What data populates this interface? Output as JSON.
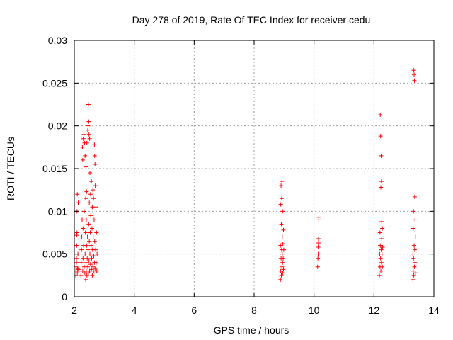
{
  "chart_data": {
    "type": "scatter",
    "title": "Day 278 of 2019, Rate Of TEC Index for receiver cedu",
    "xlabel": "GPS time / hours",
    "ylabel": "ROTI / TECUs",
    "xlim": [
      2,
      14
    ],
    "ylim": [
      0,
      0.03
    ],
    "x_ticks": [
      2,
      4,
      6,
      8,
      10,
      12,
      14
    ],
    "x_tick_labels": [
      "2",
      "4",
      "6",
      "8",
      "10",
      "12",
      "14"
    ],
    "y_ticks": [
      0,
      0.005,
      0.01,
      0.015,
      0.02,
      0.025,
      0.03
    ],
    "y_tick_labels": [
      "0",
      "0.005",
      "0.01",
      "0.015",
      "0.02",
      "0.025",
      "0.03"
    ],
    "grid": true,
    "marker": "+",
    "color": "#ff0000",
    "series": [
      {
        "name": "ROTI",
        "points": [
          [
            2.05,
            0.0025
          ],
          [
            2.05,
            0.003
          ],
          [
            2.06,
            0.0035
          ],
          [
            2.07,
            0.004
          ],
          [
            2.07,
            0.0045
          ],
          [
            2.08,
            0.006
          ],
          [
            2.08,
            0.0072
          ],
          [
            2.09,
            0.0075
          ],
          [
            2.09,
            0.01
          ],
          [
            2.1,
            0.012
          ],
          [
            2.1,
            0.0028
          ],
          [
            2.11,
            0.0033
          ],
          [
            2.12,
            0.005
          ],
          [
            2.13,
            0.011
          ],
          [
            2.14,
            0.0032
          ],
          [
            2.15,
            0.003
          ],
          [
            2.22,
            0.0025
          ],
          [
            2.23,
            0.004
          ],
          [
            2.24,
            0.0055
          ],
          [
            2.25,
            0.007
          ],
          [
            2.26,
            0.009
          ],
          [
            2.27,
            0.0175
          ],
          [
            2.28,
            0.003
          ],
          [
            2.28,
            0.016
          ],
          [
            2.29,
            0.0045
          ],
          [
            2.29,
            0.008
          ],
          [
            2.3,
            0.0185
          ],
          [
            2.31,
            0.006
          ],
          [
            2.32,
            0.019
          ],
          [
            2.33,
            0.0035
          ],
          [
            2.33,
            0.01
          ],
          [
            2.34,
            0.018
          ],
          [
            2.35,
            0.0028
          ],
          [
            2.36,
            0.005
          ],
          [
            2.36,
            0.0165
          ],
          [
            2.37,
            0.0075
          ],
          [
            2.38,
            0.002
          ],
          [
            2.38,
            0.0115
          ],
          [
            2.39,
            0.004
          ],
          [
            2.39,
            0.0152
          ],
          [
            2.4,
            0.003
          ],
          [
            2.4,
            0.009
          ],
          [
            2.41,
            0.006
          ],
          [
            2.41,
            0.0123
          ],
          [
            2.42,
            0.0025
          ],
          [
            2.42,
            0.018
          ],
          [
            2.43,
            0.0045
          ],
          [
            2.44,
            0.007
          ],
          [
            2.45,
            0.0035
          ],
          [
            2.45,
            0.0195
          ],
          [
            2.46,
            0.0055
          ],
          [
            2.46,
            0.02
          ],
          [
            2.47,
            0.0028
          ],
          [
            2.47,
            0.0225
          ],
          [
            2.48,
            0.0085
          ],
          [
            2.48,
            0.0205
          ],
          [
            2.49,
            0.0042
          ],
          [
            2.49,
            0.019
          ],
          [
            2.5,
            0.011
          ],
          [
            2.5,
            0.0065
          ],
          [
            2.51,
            0.003
          ],
          [
            2.51,
            0.0185
          ],
          [
            2.52,
            0.005
          ],
          [
            2.52,
            0.0145
          ],
          [
            2.53,
            0.0075
          ],
          [
            2.54,
            0.0038
          ],
          [
            2.54,
            0.012
          ],
          [
            2.55,
            0.0095
          ],
          [
            2.56,
            0.006
          ],
          [
            2.57,
            0.0032
          ],
          [
            2.57,
            0.0135
          ],
          [
            2.58,
            0.0045
          ],
          [
            2.59,
            0.008
          ],
          [
            2.6,
            0.0025
          ],
          [
            2.6,
            0.0105
          ],
          [
            2.61,
            0.0055
          ],
          [
            2.62,
            0.0035
          ],
          [
            2.62,
            0.0125
          ],
          [
            2.63,
            0.007
          ],
          [
            2.64,
            0.003
          ],
          [
            2.64,
            0.0115
          ],
          [
            2.65,
            0.0048
          ],
          [
            2.66,
            0.009
          ],
          [
            2.67,
            0.004
          ],
          [
            2.67,
            0.0178
          ],
          [
            2.68,
            0.0165
          ],
          [
            2.68,
            0.0065
          ],
          [
            2.69,
            0.0155
          ],
          [
            2.69,
            0.0033
          ],
          [
            2.7,
            0.013
          ],
          [
            2.71,
            0.0055
          ],
          [
            2.72,
            0.0028
          ],
          [
            2.72,
            0.0105
          ],
          [
            2.73,
            0.004
          ],
          [
            2.74,
            0.0075
          ],
          [
            2.75,
            0.003
          ],
          [
            2.76,
            0.005
          ],
          [
            8.88,
            0.002
          ],
          [
            8.88,
            0.006
          ],
          [
            8.89,
            0.003
          ],
          [
            8.89,
            0.0108
          ],
          [
            8.9,
            0.0045
          ],
          [
            8.9,
            0.013
          ],
          [
            8.91,
            0.0025
          ],
          [
            8.91,
            0.0085
          ],
          [
            8.92,
            0.0055
          ],
          [
            8.92,
            0.0115
          ],
          [
            8.93,
            0.0035
          ],
          [
            8.93,
            0.0135
          ],
          [
            8.94,
            0.007
          ],
          [
            8.94,
            0.005
          ],
          [
            8.95,
            0.004
          ],
          [
            8.95,
            0.01
          ],
          [
            8.96,
            0.0028
          ],
          [
            8.96,
            0.0062
          ],
          [
            8.97,
            0.0045
          ],
          [
            8.98,
            0.0078
          ],
          [
            8.98,
            0.0032
          ],
          [
            8.99,
            0.0055
          ],
          [
            10.12,
            0.0035
          ],
          [
            10.13,
            0.0045
          ],
          [
            10.14,
            0.005
          ],
          [
            10.14,
            0.0058
          ],
          [
            10.15,
            0.0063
          ],
          [
            10.15,
            0.0068
          ],
          [
            10.16,
            0.009
          ],
          [
            10.16,
            0.0093
          ],
          [
            12.18,
            0.0025
          ],
          [
            12.19,
            0.005
          ],
          [
            12.2,
            0.0035
          ],
          [
            12.2,
            0.0075
          ],
          [
            12.21,
            0.006
          ],
          [
            12.21,
            0.0213
          ],
          [
            12.22,
            0.0045
          ],
          [
            12.22,
            0.0188
          ],
          [
            12.23,
            0.003
          ],
          [
            12.23,
            0.0128
          ],
          [
            12.24,
            0.0055
          ],
          [
            12.24,
            0.0165
          ],
          [
            12.25,
            0.004
          ],
          [
            12.25,
            0.0135
          ],
          [
            12.26,
            0.0068
          ],
          [
            12.26,
            0.0088
          ],
          [
            12.27,
            0.005
          ],
          [
            12.28,
            0.0035
          ],
          [
            12.28,
            0.008
          ],
          [
            12.29,
            0.0058
          ],
          [
            13.3,
            0.002
          ],
          [
            13.3,
            0.005
          ],
          [
            13.31,
            0.003
          ],
          [
            13.31,
            0.008
          ],
          [
            13.32,
            0.0045
          ],
          [
            13.32,
            0.01
          ],
          [
            13.33,
            0.0025
          ],
          [
            13.33,
            0.0265
          ],
          [
            13.34,
            0.006
          ],
          [
            13.34,
            0.026
          ],
          [
            13.35,
            0.0035
          ],
          [
            13.35,
            0.0253
          ],
          [
            13.36,
            0.0055
          ],
          [
            13.36,
            0.0117
          ],
          [
            13.37,
            0.004
          ],
          [
            13.37,
            0.009
          ],
          [
            13.38,
            0.0028
          ],
          [
            13.38,
            0.007
          ]
        ]
      }
    ]
  }
}
